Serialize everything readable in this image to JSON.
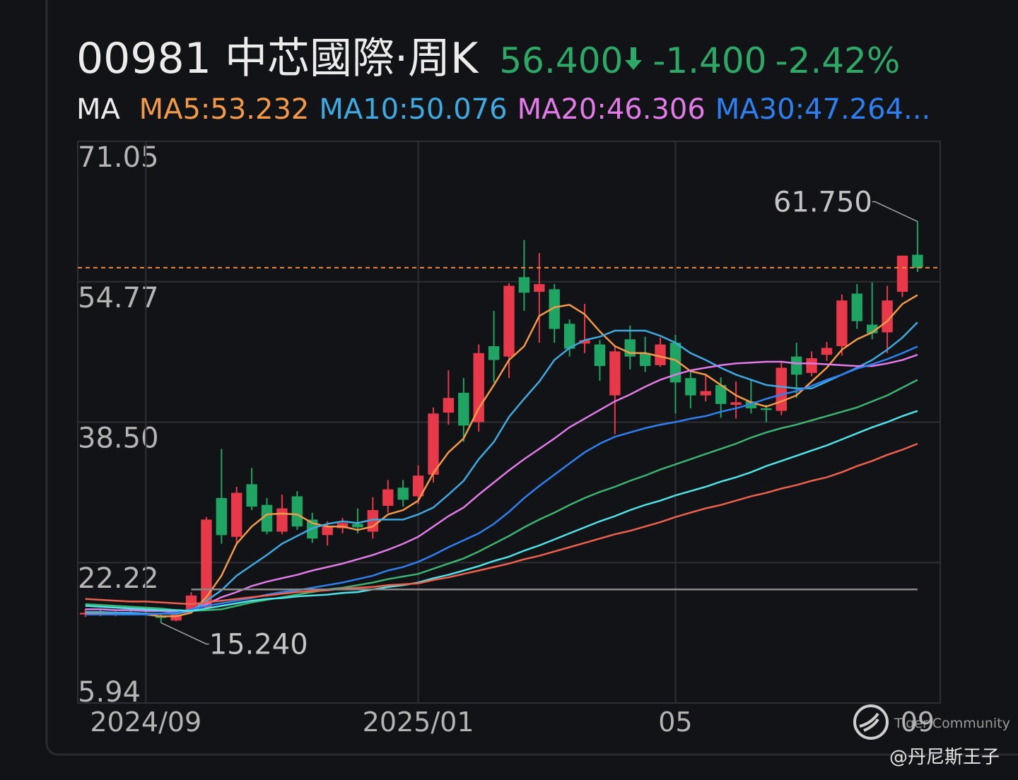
{
  "chart_data": {
    "type": "candlestick",
    "title": "00981 中芯國際·周K",
    "quote": {
      "price": "56.400",
      "change": "-1.400",
      "change_pct": "-2.42%",
      "color": "#2ea866"
    },
    "legend_title": "MA",
    "up_color": "#e8394a",
    "down_color": "#1fa463",
    "categories": [
      null,
      null,
      null,
      null,
      "2024/09",
      null,
      null,
      null,
      null,
      null,
      null,
      null,
      null,
      null,
      null,
      null,
      null,
      null,
      null,
      null,
      null,
      null,
      "2025/01",
      null,
      null,
      null,
      null,
      null,
      null,
      null,
      null,
      null,
      null,
      null,
      null,
      null,
      null,
      null,
      null,
      "05",
      null,
      null,
      null,
      null,
      null,
      null,
      null,
      null,
      null,
      null,
      null,
      null,
      null,
      null,
      null,
      "09"
    ],
    "open": [
      16.2,
      16.4,
      16.2,
      16.4,
      16.4,
      16.0,
      15.5,
      16.6,
      17.0,
      29.7,
      25.2,
      31.3,
      28.9,
      25.8,
      29.9,
      27.2,
      25.4,
      26.2,
      26.7,
      25.8,
      28.8,
      30.9,
      29.9,
      32.4,
      39.6,
      41.9,
      38.5,
      47.3,
      46.1,
      55.3,
      53.6,
      53.9,
      49.9,
      47.6,
      47.5,
      41.6,
      48.1,
      46.5,
      45.1,
      47.7,
      43.6,
      41.6,
      42.8,
      40.5,
      40.9,
      40.1,
      39.8,
      46.1,
      44.2,
      46.3,
      47.3,
      53.4,
      49.8,
      48.9,
      53.6,
      57.9
    ],
    "high": [
      16.8,
      16.7,
      16.6,
      16.7,
      16.6,
      16.2,
      16.3,
      18.8,
      27.5,
      35.4,
      31.0,
      33.2,
      29.7,
      30.1,
      30.5,
      28.0,
      27.0,
      27.4,
      28.5,
      29.8,
      31.8,
      31.8,
      33.5,
      40.2,
      44.5,
      43.6,
      47.5,
      51.4,
      54.6,
      59.6,
      58.1,
      54.5,
      50.4,
      52.2,
      48.0,
      47.3,
      49.7,
      48.4,
      48.3,
      48.6,
      44.4,
      43.9,
      43.7,
      43.2,
      43.4,
      40.5,
      45.6,
      47.7,
      46.7,
      47.8,
      53.3,
      54.5,
      54.7,
      54.3,
      57.8,
      61.75
    ],
    "low": [
      15.9,
      16.0,
      16.0,
      16.1,
      16.1,
      15.24,
      15.4,
      16.3,
      16.8,
      24.4,
      24.5,
      28.3,
      25.5,
      25.5,
      26.0,
      24.5,
      24.2,
      25.6,
      25.6,
      25.0,
      28.0,
      28.7,
      29.0,
      31.5,
      38.2,
      36.2,
      37.4,
      43.1,
      43.6,
      51.4,
      47.7,
      47.7,
      46.1,
      46.5,
      43.3,
      37.1,
      44.6,
      44.3,
      44.9,
      39.5,
      40.1,
      40.9,
      39.0,
      38.9,
      39.5,
      38.5,
      39.3,
      41.3,
      43.8,
      45.6,
      46.2,
      49.3,
      48.1,
      46.5,
      53.0,
      55.9
    ],
    "close": [
      16.4,
      16.2,
      16.4,
      16.3,
      16.1,
      15.8,
      16.2,
      18.4,
      27.2,
      25.4,
      30.3,
      28.7,
      25.8,
      28.5,
      26.4,
      25.0,
      26.4,
      26.8,
      26.3,
      28.3,
      30.7,
      29.5,
      32.3,
      39.5,
      41.3,
      38.1,
      46.5,
      45.7,
      54.3,
      53.5,
      54.5,
      49.3,
      47.0,
      48.0,
      45.0,
      46.7,
      46.1,
      45.0,
      47.5,
      43.1,
      41.6,
      42.1,
      40.6,
      40.8,
      40.1,
      39.9,
      44.8,
      44.0,
      45.9,
      47.1,
      52.6,
      50.2,
      48.8,
      52.6,
      57.8,
      56.4
    ],
    "max_label": {
      "value": 61.75,
      "label": "61.750"
    },
    "min_label": {
      "value": 15.24,
      "label": "15.240"
    },
    "series": [
      {
        "name": "MA5:53.232",
        "color": "#f39a4a",
        "values": [
          16.4,
          16.3,
          16.3,
          16.2,
          16.2,
          16.0,
          16.0,
          16.4,
          18.2,
          20.7,
          24.4,
          26.4,
          27.8,
          27.9,
          27.8,
          26.8,
          26.4,
          26.4,
          26.0,
          26.4,
          27.8,
          28.3,
          29.4,
          32.6,
          35.0,
          36.6,
          40.1,
          42.8,
          45.7,
          47.3,
          50.8,
          51.8,
          52.1,
          51.0,
          49.0,
          47.3,
          46.5,
          46.5,
          46.1,
          45.7,
          44.4,
          44.0,
          42.8,
          41.6,
          40.8,
          40.3,
          40.9,
          41.6,
          43.2,
          44.8,
          46.9,
          48.1,
          48.9,
          50.2,
          52.2,
          53.232
        ]
      },
      {
        "name": "MA10:50.076",
        "color": "#3fa9e0",
        "values": [
          16.5,
          16.5,
          16.4,
          16.4,
          16.3,
          16.3,
          16.3,
          16.6,
          17.8,
          19.0,
          20.7,
          21.9,
          23.1,
          24.4,
          25.3,
          26.2,
          26.7,
          27.0,
          26.8,
          27.2,
          27.2,
          27.2,
          27.8,
          28.6,
          30.1,
          31.7,
          34.2,
          36.2,
          39.1,
          41.2,
          43.2,
          45.7,
          47.1,
          48.0,
          48.4,
          49.1,
          49.1,
          49.1,
          48.5,
          47.7,
          46.5,
          45.7,
          44.8,
          44.0,
          43.4,
          42.8,
          42.6,
          42.4,
          42.4,
          43.2,
          44.0,
          44.8,
          45.7,
          46.9,
          48.3,
          50.076
        ]
      },
      {
        "name": "MA20:46.306",
        "color": "#e27ae8",
        "values": [
          16.8,
          16.8,
          16.7,
          16.7,
          16.6,
          16.6,
          16.5,
          16.6,
          17.4,
          18.2,
          18.8,
          19.5,
          20.0,
          20.4,
          20.8,
          21.3,
          21.7,
          22.1,
          22.6,
          23.1,
          23.7,
          24.4,
          25.2,
          26.4,
          27.6,
          28.6,
          30.1,
          31.5,
          32.9,
          34.2,
          35.4,
          36.6,
          37.9,
          38.9,
          39.9,
          40.9,
          41.7,
          42.6,
          43.4,
          44.0,
          44.5,
          44.8,
          45.1,
          45.3,
          45.4,
          45.5,
          45.5,
          45.3,
          45.3,
          45.2,
          45.1,
          45.0,
          45.0,
          45.3,
          45.7,
          46.306
        ]
      },
      {
        "name": "MA30:47.264...",
        "color": "#2f7ff0",
        "values": [
          16.2,
          16.2,
          16.2,
          16.2,
          16.2,
          16.3,
          16.4,
          16.8,
          17.2,
          17.5,
          17.8,
          18.1,
          18.5,
          18.8,
          19.0,
          19.3,
          19.6,
          19.9,
          20.3,
          20.7,
          21.3,
          21.7,
          22.3,
          23.1,
          24.0,
          24.8,
          25.6,
          26.7,
          28.1,
          29.7,
          31.1,
          32.4,
          33.7,
          35.0,
          36.0,
          36.8,
          37.3,
          37.8,
          38.2,
          38.5,
          38.9,
          39.2,
          39.7,
          40.1,
          40.6,
          41.2,
          41.7,
          42.1,
          42.7,
          43.4,
          44.0,
          44.7,
          45.2,
          45.8,
          46.5,
          47.264
        ]
      },
      {
        "color": "#3cb371",
        "values": [
          17.4,
          17.3,
          17.2,
          17.1,
          17.0,
          16.9,
          16.7,
          16.6,
          16.7,
          16.8,
          17.2,
          17.6,
          17.9,
          18.2,
          18.5,
          18.8,
          19.1,
          19.3,
          19.6,
          19.9,
          20.3,
          20.6,
          20.9,
          21.5,
          22.1,
          22.7,
          23.5,
          24.4,
          25.3,
          26.3,
          27.2,
          28.0,
          28.9,
          29.7,
          30.4,
          31.0,
          31.7,
          32.3,
          33.0,
          33.6,
          34.2,
          34.8,
          35.4,
          36.0,
          36.7,
          37.3,
          37.8,
          38.2,
          38.7,
          39.2,
          39.7,
          40.2,
          40.9,
          41.6,
          42.5,
          43.4
        ]
      },
      {
        "color": "#4fe3e8",
        "values": [
          17.2,
          17.1,
          17.0,
          16.9,
          16.8,
          16.7,
          16.7,
          16.6,
          16.9,
          17.2,
          17.5,
          17.8,
          18.0,
          18.1,
          18.3,
          18.4,
          18.5,
          18.7,
          18.8,
          19.1,
          19.4,
          19.6,
          19.9,
          20.4,
          20.8,
          21.3,
          21.8,
          22.4,
          22.9,
          23.6,
          24.2,
          24.9,
          25.6,
          26.3,
          27.0,
          27.6,
          28.3,
          28.9,
          29.4,
          30.0,
          30.5,
          31.0,
          31.6,
          32.1,
          32.7,
          33.4,
          34.0,
          34.6,
          35.2,
          35.8,
          36.5,
          37.2,
          37.9,
          38.5,
          39.2,
          39.8
        ]
      },
      {
        "color": "#f0604e",
        "values": [
          18.0,
          17.9,
          17.8,
          17.7,
          17.7,
          17.6,
          17.5,
          17.4,
          17.6,
          17.8,
          18.0,
          18.2,
          18.4,
          18.6,
          18.8,
          18.9,
          19.0,
          19.2,
          19.3,
          19.4,
          19.6,
          19.7,
          19.8,
          20.2,
          20.5,
          20.9,
          21.3,
          21.7,
          22.1,
          22.6,
          23.0,
          23.5,
          24.0,
          24.5,
          25.0,
          25.5,
          25.9,
          26.4,
          26.9,
          27.5,
          28.0,
          28.5,
          28.9,
          29.4,
          29.9,
          30.3,
          30.8,
          31.2,
          31.7,
          32.1,
          32.7,
          33.4,
          34.0,
          34.7,
          35.3,
          36.0
        ]
      },
      {
        "color": "#8a8a8a",
        "values": [
          null,
          null,
          null,
          null,
          null,
          null,
          null,
          19.1,
          19.1,
          19.1,
          19.1,
          19.1,
          19.1,
          19.1,
          19.1,
          19.1,
          19.1,
          19.1,
          19.1,
          19.1,
          19.1,
          19.1,
          19.1,
          19.1,
          19.1,
          19.1,
          19.1,
          19.1,
          19.1,
          19.1,
          19.1,
          19.1,
          19.1,
          19.1,
          19.1,
          19.1,
          19.1,
          19.1,
          19.1,
          19.1,
          19.1,
          19.1,
          19.1,
          19.1,
          19.1,
          19.1,
          19.1,
          19.1,
          19.1,
          19.1,
          19.1,
          19.1,
          19.1,
          19.1,
          19.1,
          19.1
        ]
      }
    ],
    "last_price_line_color": "#f0883e",
    "ylim": [
      5.94,
      71.05
    ],
    "yticks": [
      71.05,
      54.77,
      {
        "value": 38.5,
        "label": "38.50"
      },
      22.22,
      5.94
    ],
    "grid": true
  },
  "watermark": {
    "brand": "Tiger Community",
    "author": "@丹尼斯王子"
  }
}
